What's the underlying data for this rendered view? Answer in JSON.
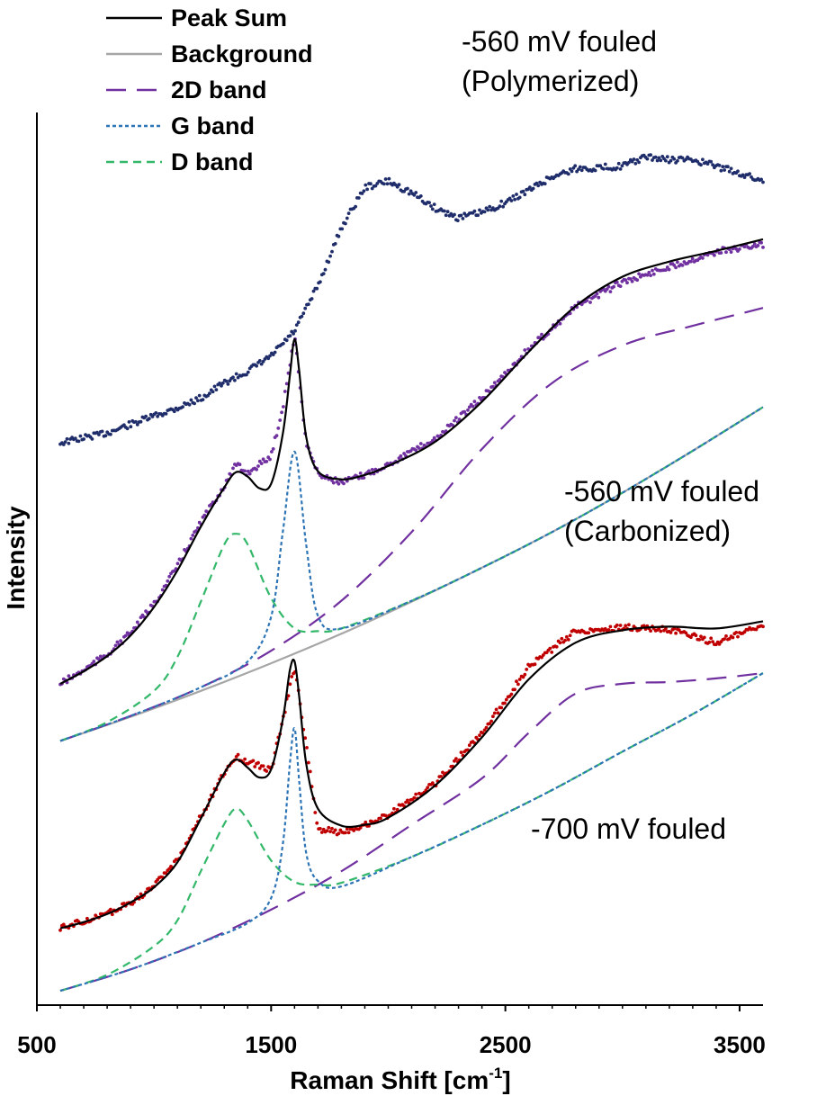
{
  "chart_data": {
    "type": "line",
    "xlabel": "Raman Shift [cm",
    "xlabel_sup": "-1",
    "xlabel_end": "]",
    "ylabel": "Intensity",
    "xlim": [
      500,
      3600
    ],
    "ylim": [
      0,
      100
    ],
    "x_ticks": [
      500,
      1500,
      2500,
      3500
    ],
    "x_tick_labels": [
      "500",
      "1500",
      "2500",
      "3500"
    ],
    "legend": {
      "placement": "top-left",
      "entries": [
        {
          "name": "Peak Sum",
          "color": "#000000",
          "style": "solid"
        },
        {
          "name": "Background",
          "color": "#a6a6a6",
          "style": "solid"
        },
        {
          "name": "2D band",
          "color": "#7030a0",
          "style": "long-dash"
        },
        {
          "name": "G band",
          "color": "#2e75b6",
          "style": "dot"
        },
        {
          "name": "D band",
          "color": "#33b86a",
          "style": "dash"
        }
      ]
    },
    "annotations": [
      {
        "lines": [
          "-560 mV  fouled",
          "(Polymerized)"
        ]
      },
      {
        "lines": [
          "-560 mV  fouled",
          "(Carbonized)"
        ]
      },
      {
        "lines": [
          "-700 mV  fouled"
        ]
      }
    ],
    "series": [
      {
        "group": "-560 mV fouled (Polymerized)",
        "role": "measured",
        "color": "#1f2d6b",
        "x": [
          600,
          800,
          1000,
          1100,
          1200,
          1300,
          1400,
          1500,
          1600,
          1700,
          1800,
          1900,
          2000,
          2100,
          2200,
          2300,
          2400,
          2500,
          2600,
          2700,
          2800,
          2900,
          3000,
          3100,
          3200,
          3300,
          3400,
          3500,
          3600
        ],
        "y": [
          63.0,
          64.1,
          66.0,
          66.9,
          68.0,
          69.7,
          71.0,
          72.7,
          75.5,
          80.6,
          87.1,
          91.6,
          92.3,
          91.0,
          89.3,
          88.2,
          88.8,
          89.9,
          91.3,
          92.8,
          93.7,
          93.8,
          94.0,
          95.0,
          94.7,
          94.7,
          94.0,
          93.2,
          92.3
        ]
      },
      {
        "group": "-560 mV fouled (Carbonized)",
        "role": "measured",
        "color": "#7030a0",
        "x": [
          600,
          700,
          800,
          900,
          1000,
          1100,
          1200,
          1300,
          1350,
          1400,
          1500,
          1550,
          1600,
          1650,
          1700,
          1800,
          1900,
          2000,
          2200,
          2400,
          2600,
          2800,
          3000,
          3200,
          3400,
          3600
        ],
        "y": [
          36.0,
          37.5,
          39.3,
          41.7,
          44.9,
          49.2,
          54.1,
          58.2,
          60.5,
          59.6,
          61.5,
          67.0,
          75.0,
          63.0,
          59.5,
          58.5,
          59.4,
          60.6,
          63.4,
          68.0,
          73.5,
          78.2,
          81.0,
          82.7,
          84.4,
          85.2
        ]
      },
      {
        "group": "-560 mV fouled (Carbonized)",
        "role": "Peak Sum",
        "color": "#000000",
        "style": "solid",
        "x": [
          600,
          700,
          800,
          900,
          1000,
          1100,
          1200,
          1300,
          1350,
          1400,
          1450,
          1500,
          1550,
          1580,
          1600,
          1620,
          1650,
          1700,
          1800,
          1900,
          2000,
          2200,
          2400,
          2600,
          2800,
          3000,
          3200,
          3400,
          3600
        ],
        "y": [
          36.0,
          37.4,
          39.1,
          41.4,
          44.6,
          48.7,
          53.6,
          58.0,
          59.7,
          59.2,
          57.9,
          58.4,
          64.0,
          70.5,
          74.6,
          71.0,
          63.6,
          59.8,
          58.9,
          59.4,
          60.4,
          63.1,
          67.6,
          73.2,
          78.3,
          81.6,
          83.3,
          84.5,
          85.8
        ]
      },
      {
        "group": "-560 mV fouled (Carbonized)",
        "role": "Background",
        "color": "#a6a6a6",
        "style": "solid",
        "x": [
          600,
          900,
          1200,
          1500,
          1800,
          2100,
          2400,
          2700,
          3000,
          3300,
          3600
        ],
        "y": [
          29.6,
          32.3,
          35.2,
          38.3,
          41.6,
          45.2,
          49.0,
          53.0,
          57.4,
          62.1,
          67.0
        ]
      },
      {
        "group": "-560 mV fouled (Carbonized)",
        "role": "2D band",
        "color": "#7030a0",
        "style": "long-dash",
        "x": [
          600,
          900,
          1200,
          1500,
          1800,
          2100,
          2400,
          2700,
          3000,
          3300,
          3600
        ],
        "y": [
          29.6,
          32.4,
          35.6,
          39.7,
          45.3,
          53.0,
          62.3,
          69.7,
          73.9,
          76.1,
          78.1
        ]
      },
      {
        "group": "-560 mV fouled (Carbonized)",
        "role": "G band",
        "color": "#2e75b6",
        "style": "dot",
        "x": [
          600,
          900,
          1200,
          1400,
          1500,
          1550,
          1600,
          1650,
          1700,
          1800,
          2100,
          2400,
          2700,
          3000,
          3300,
          3600
        ],
        "y": [
          29.6,
          32.4,
          35.6,
          38.5,
          43.5,
          53.0,
          62.0,
          51.5,
          43.6,
          42.2,
          45.3,
          49.0,
          53.0,
          57.4,
          62.1,
          67.0
        ]
      },
      {
        "group": "-560 mV fouled (Carbonized)",
        "role": "D band",
        "color": "#33b86a",
        "style": "dash",
        "x": [
          600,
          800,
          1000,
          1100,
          1200,
          1300,
          1350,
          1400,
          1500,
          1600,
          1700,
          1800,
          2100,
          2400,
          2700,
          3000,
          3300,
          3600
        ],
        "y": [
          29.6,
          31.7,
          35.2,
          39.0,
          45.2,
          51.6,
          52.8,
          51.6,
          45.6,
          42.2,
          41.9,
          42.2,
          45.3,
          49.0,
          53.0,
          57.4,
          62.1,
          67.0
        ]
      },
      {
        "group": "-700 mV fouled",
        "role": "measured",
        "color": "#c00000",
        "x": [
          600,
          700,
          800,
          900,
          1000,
          1100,
          1200,
          1300,
          1350,
          1400,
          1500,
          1550,
          1600,
          1650,
          1700,
          1800,
          1900,
          2000,
          2200,
          2400,
          2600,
          2800,
          3000,
          3200,
          3400,
          3600
        ],
        "y": [
          8.6,
          9.4,
          10.2,
          11.5,
          13.3,
          16.3,
          21.1,
          26.0,
          27.8,
          27.3,
          26.3,
          32.0,
          38.0,
          29.0,
          19.7,
          19.4,
          20.2,
          21.3,
          24.8,
          30.5,
          37.9,
          41.9,
          42.3,
          42.1,
          40.6,
          42.5
        ]
      },
      {
        "group": "-700 mV fouled",
        "role": "Peak Sum",
        "color": "#000000",
        "style": "solid",
        "x": [
          600,
          700,
          800,
          900,
          1000,
          1100,
          1200,
          1300,
          1350,
          1400,
          1450,
          1500,
          1550,
          1580,
          1600,
          1620,
          1650,
          1700,
          1800,
          1900,
          2000,
          2200,
          2400,
          2600,
          2800,
          3000,
          3200,
          3400,
          3600
        ],
        "y": [
          8.6,
          9.3,
          10.2,
          11.5,
          13.2,
          16.0,
          20.9,
          26.0,
          27.5,
          26.6,
          25.5,
          26.4,
          32.0,
          37.5,
          38.5,
          34.5,
          27.0,
          22.0,
          20.1,
          20.2,
          21.0,
          24.6,
          30.0,
          36.5,
          40.6,
          42.0,
          42.4,
          42.2,
          43.0
        ]
      },
      {
        "group": "-700 mV fouled",
        "role": "2D band",
        "color": "#7030a0",
        "style": "long-dash",
        "x": [
          600,
          900,
          1200,
          1500,
          1800,
          2100,
          2400,
          2600,
          2800,
          3000,
          3200,
          3400,
          3600
        ],
        "y": [
          1.6,
          4.0,
          7.0,
          10.7,
          15.0,
          20.2,
          25.4,
          30.5,
          34.9,
          36.0,
          36.2,
          36.6,
          37.2
        ]
      },
      {
        "group": "-700 mV fouled",
        "role": "G band",
        "color": "#2e75b6",
        "style": "dot",
        "x": [
          600,
          900,
          1200,
          1400,
          1500,
          1550,
          1580,
          1600,
          1620,
          1650,
          1700,
          1800,
          2100,
          2400,
          2700,
          3000,
          3300,
          3600
        ],
        "y": [
          1.6,
          4.0,
          7.0,
          9.2,
          12.0,
          18.0,
          27.0,
          31.0,
          25.0,
          17.0,
          13.9,
          13.3,
          16.6,
          20.2,
          24.1,
          28.4,
          32.6,
          37.2
        ]
      },
      {
        "group": "-700 mV fouled",
        "role": "D band",
        "color": "#33b86a",
        "style": "dash",
        "x": [
          600,
          800,
          1000,
          1100,
          1200,
          1300,
          1350,
          1400,
          1500,
          1600,
          1700,
          1800,
          2100,
          2400,
          2700,
          3000,
          3300,
          3600
        ],
        "y": [
          1.6,
          3.4,
          6.6,
          9.5,
          15.0,
          20.3,
          22.0,
          20.7,
          16.2,
          13.8,
          13.5,
          13.7,
          16.6,
          20.2,
          24.1,
          28.4,
          32.6,
          37.2
        ]
      }
    ]
  }
}
